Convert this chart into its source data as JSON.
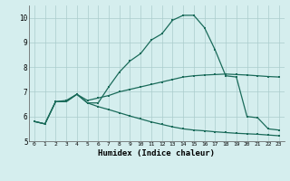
{
  "title": "",
  "xlabel": "Humidex (Indice chaleur)",
  "xlim": [
    -0.5,
    23.5
  ],
  "ylim": [
    5,
    10.5
  ],
  "yticks": [
    5,
    6,
    7,
    8,
    9,
    10
  ],
  "xticks": [
    0,
    1,
    2,
    3,
    4,
    5,
    6,
    7,
    8,
    9,
    10,
    11,
    12,
    13,
    14,
    15,
    16,
    17,
    18,
    19,
    20,
    21,
    22,
    23
  ],
  "bg_color": "#d5eeee",
  "grid_color": "#aacccc",
  "line_color": "#1a6b5a",
  "line1_y": [
    5.8,
    5.7,
    6.6,
    6.6,
    6.9,
    6.55,
    6.55,
    7.2,
    7.8,
    8.25,
    8.55,
    9.1,
    9.35,
    9.9,
    10.1,
    10.1,
    9.6,
    8.7,
    7.65,
    7.6,
    6.0,
    5.95,
    5.5,
    5.45
  ],
  "line2_y": [
    5.8,
    5.7,
    6.6,
    6.65,
    6.9,
    6.65,
    6.75,
    6.85,
    7.0,
    7.1,
    7.2,
    7.3,
    7.4,
    7.5,
    7.6,
    7.65,
    7.68,
    7.7,
    7.72,
    7.7,
    7.68,
    7.65,
    7.62,
    7.6
  ],
  "line3_y": [
    5.8,
    5.7,
    6.6,
    6.6,
    6.9,
    6.55,
    6.4,
    6.28,
    6.15,
    6.02,
    5.9,
    5.78,
    5.68,
    5.58,
    5.5,
    5.45,
    5.42,
    5.38,
    5.35,
    5.32,
    5.3,
    5.28,
    5.25,
    5.22
  ]
}
